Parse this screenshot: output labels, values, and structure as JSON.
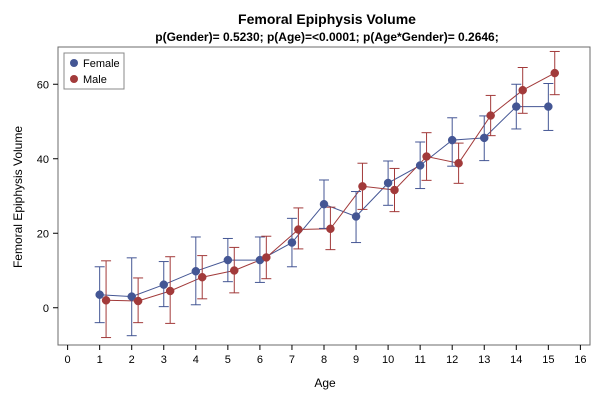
{
  "chart_data": {
    "type": "line",
    "title": "Femoral Epiphysis Volume",
    "subtitle": "p(Gender)= 0.5230; p(Age)=<0.0001; p(Age*Gender)= 0.2646;",
    "xlabel": "Age",
    "ylabel": "Femoral Epiphysis Volume",
    "xlim": [
      -0.3,
      16.3
    ],
    "ylim": [
      -10,
      70
    ],
    "xticks": [
      0,
      1,
      2,
      3,
      4,
      5,
      6,
      7,
      8,
      9,
      10,
      11,
      12,
      13,
      14,
      15,
      16
    ],
    "yticks": [
      0,
      20,
      40,
      60
    ],
    "grid": false,
    "legend_position": "top-left",
    "error_bars": true,
    "series": [
      {
        "name": "Female",
        "color": "#445694",
        "x": [
          1,
          2,
          3,
          4,
          5,
          6,
          7,
          8,
          9,
          10,
          11,
          12,
          13,
          14,
          15
        ],
        "y": [
          3.5,
          3.0,
          6.2,
          9.8,
          12.8,
          12.8,
          17.5,
          27.8,
          24.5,
          33.5,
          38.2,
          45.0,
          45.6,
          54.0,
          54.0
        ],
        "ylow": [
          -4.0,
          -7.5,
          0.3,
          0.8,
          7.0,
          6.8,
          11.0,
          21.3,
          17.5,
          27.5,
          32.0,
          38.0,
          39.5,
          48.0,
          47.6
        ],
        "yhigh": [
          11.0,
          13.4,
          12.4,
          19.0,
          18.6,
          19.0,
          24.0,
          34.3,
          31.2,
          39.4,
          44.5,
          51.0,
          51.5,
          60.0,
          60.2
        ]
      },
      {
        "name": "Male",
        "color": "#A23A3A",
        "x": [
          1.2,
          2.2,
          3.2,
          4.2,
          5.2,
          6.2,
          7.2,
          8.2,
          9.2,
          10.2,
          11.2,
          12.2,
          13.2,
          14.2,
          15.2
        ],
        "y": [
          2.0,
          1.8,
          4.5,
          8.2,
          10.0,
          13.5,
          21.0,
          21.2,
          32.6,
          31.6,
          40.6,
          38.8,
          51.6,
          58.4,
          63.0
        ],
        "ylow": [
          -8.0,
          -4.0,
          -4.2,
          2.4,
          4.0,
          7.8,
          15.8,
          15.6,
          26.4,
          25.8,
          34.2,
          33.4,
          46.2,
          52.2,
          57.2
        ],
        "yhigh": [
          12.6,
          8.0,
          13.7,
          14.0,
          16.2,
          19.2,
          26.8,
          27.0,
          38.8,
          37.4,
          47.0,
          44.2,
          57.0,
          64.5,
          68.8
        ]
      }
    ]
  }
}
